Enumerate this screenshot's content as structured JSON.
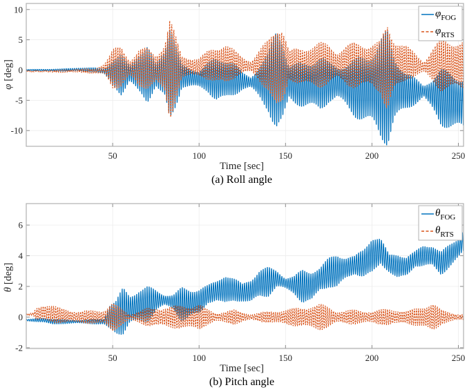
{
  "chart_data": [
    {
      "type": "line",
      "id": "roll",
      "caption": "(a) Roll angle",
      "xlabel": "Time [sec]",
      "ylabel_symbol": "φ",
      "ylabel_unit": " [deg]",
      "xlim": [
        0,
        253
      ],
      "ylim": [
        -12.6,
        11
      ],
      "xticks": [
        50,
        100,
        150,
        200,
        250
      ],
      "yticks": [
        10,
        5,
        0,
        -5,
        -10
      ],
      "xtick_labels": [
        "50",
        "100",
        "150",
        "200",
        "250"
      ],
      "ytick_labels": [
        "10",
        "5",
        "0",
        "-5",
        "-10"
      ],
      "grid": true,
      "legend_position": "top-right",
      "legend": [
        {
          "symbol": "φ",
          "sub": "FOG",
          "style": "solid",
          "color": "#0072BD"
        },
        {
          "symbol": "φ",
          "sub": "RTS",
          "style": "dashed",
          "color": "#D95319"
        }
      ],
      "series": [
        {
          "name": "φ_FOG",
          "color": "#0072BD",
          "style": "solid",
          "oscillation_period_sec": 1.2,
          "envelope": {
            "t": [
              0,
              20,
              30,
              40,
              45,
              50,
              55,
              60,
              65,
              70,
              75,
              80,
              83,
              87,
              90,
              100,
              105,
              110,
              115,
              120,
              125,
              130,
              140,
              145,
              148,
              152,
              160,
              170,
              175,
              180,
              185,
              190,
              200,
              205,
              209,
              213,
              220,
              230,
              235,
              240,
              245,
              253
            ],
            "center": [
              0,
              0,
              0.1,
              0,
              -0.2,
              -0.5,
              -0.8,
              -0.5,
              -0.5,
              -0.8,
              -0.8,
              -0.5,
              -0.5,
              -1.0,
              -1.0,
              -1.5,
              -1.2,
              -1.5,
              -1.5,
              -1.5,
              -1.8,
              -2.0,
              -2.0,
              -1.5,
              -1.8,
              -2.0,
              -2.5,
              -2.2,
              -2.0,
              -2.0,
              -2.5,
              -3.0,
              -3.0,
              -3.0,
              -3.0,
              -3.0,
              -3.5,
              -3.5,
              -4.0,
              -4.5,
              -5.0,
              -5.5
            ],
            "amp": [
              0.1,
              0.2,
              0.3,
              0.4,
              0.5,
              2.5,
              3.5,
              1.5,
              4.0,
              5.0,
              2.0,
              5.0,
              10.0,
              5.0,
              2.0,
              1.5,
              2.5,
              4.0,
              4.0,
              3.0,
              1.5,
              1.0,
              5.0,
              10.0,
              9.0,
              3.0,
              4.0,
              5.0,
              3.5,
              3.0,
              4.0,
              5.0,
              7.0,
              9.0,
              10.0,
              6.0,
              3.5,
              1.0,
              3.0,
              5.0,
              5.0,
              5.0
            ]
          }
        },
        {
          "name": "φ_RTS",
          "color": "#D95319",
          "style": "dashed",
          "oscillation_period_sec": 1.2,
          "envelope": {
            "t": [
              0,
              20,
              30,
              40,
              45,
              50,
              55,
              60,
              65,
              70,
              75,
              80,
              83,
              87,
              90,
              100,
              105,
              110,
              115,
              120,
              125,
              130,
              140,
              145,
              148,
              152,
              160,
              170,
              175,
              180,
              185,
              190,
              200,
              205,
              209,
              213,
              220,
              230,
              235,
              240,
              245,
              253
            ],
            "center": [
              -0.2,
              -0.2,
              -0.1,
              -0.2,
              0.2,
              0.2,
              0.5,
              0.3,
              0.3,
              0.3,
              0.2,
              0.3,
              0.0,
              0.3,
              0.5,
              0.5,
              0.8,
              0.8,
              1.0,
              1.0,
              0.8,
              0.6,
              0.8,
              0.3,
              0.5,
              0.8,
              0.6,
              0.8,
              1.0,
              0.8,
              0.8,
              0.8,
              0.8,
              0.5,
              0.3,
              0.8,
              1.2,
              0.5,
              0.8,
              0.8,
              0.8,
              0.8
            ],
            "amp": [
              0.1,
              0.2,
              0.3,
              0.4,
              1.0,
              3.5,
              3.5,
              1.5,
              3.5,
              3.5,
              2.5,
              5.0,
              9.5,
              5.0,
              2.0,
              1.5,
              2.5,
              3.5,
              3.8,
              2.5,
              1.5,
              1.0,
              4.5,
              8.5,
              8.0,
              2.5,
              3.5,
              4.0,
              3.5,
              2.5,
              3.5,
              4.0,
              4.0,
              4.5,
              8.0,
              5.0,
              3.0,
              1.0,
              3.0,
              4.5,
              4.5,
              4.5
            ]
          }
        }
      ]
    },
    {
      "type": "line",
      "id": "pitch",
      "caption": "(b) Pitch angle",
      "xlabel": "Time [sec]",
      "ylabel_symbol": "θ",
      "ylabel_unit": " [deg]",
      "xlim": [
        0,
        253
      ],
      "ylim": [
        -2.05,
        7.4
      ],
      "xticks": [
        50,
        100,
        150,
        200,
        250
      ],
      "yticks": [
        6,
        4,
        2,
        0,
        -2
      ],
      "xtick_labels": [
        "50",
        "100",
        "150",
        "200",
        "250"
      ],
      "ytick_labels": [
        "6",
        "4",
        "2",
        "0",
        "-2"
      ],
      "grid": true,
      "legend_position": "top-right",
      "legend": [
        {
          "symbol": "θ",
          "sub": "FOG",
          "style": "solid",
          "color": "#0072BD"
        },
        {
          "symbol": "θ",
          "sub": "RTS",
          "style": "dashed",
          "color": "#D95319"
        }
      ],
      "series": [
        {
          "name": "θ_FOG",
          "color": "#0072BD",
          "style": "solid",
          "oscillation_period_sec": 1.2,
          "envelope": {
            "t": [
              0,
              5,
              10,
              15,
              20,
              30,
              45,
              48,
              52,
              56,
              60,
              65,
              70,
              75,
              80,
              85,
              90,
              95,
              100,
              105,
              110,
              115,
              120,
              125,
              130,
              135,
              140,
              145,
              150,
              155,
              160,
              165,
              170,
              175,
              180,
              185,
              190,
              195,
              200,
              205,
              210,
              215,
              220,
              225,
              230,
              235,
              240,
              245,
              250,
              253
            ],
            "center": [
              -0.2,
              -0.2,
              -0.2,
              -0.3,
              -0.3,
              -0.3,
              -0.3,
              0.0,
              0.0,
              0.4,
              0.5,
              0.7,
              0.8,
              1.1,
              1.1,
              1.0,
              0.8,
              0.9,
              1.0,
              1.5,
              1.7,
              1.8,
              1.8,
              1.6,
              1.7,
              2.2,
              2.3,
              2.5,
              2.2,
              2.1,
              2.0,
              2.0,
              2.5,
              2.9,
              3.0,
              3.2,
              3.4,
              3.5,
              4.0,
              4.3,
              3.5,
              3.3,
              3.3,
              3.8,
              4.0,
              4.0,
              3.5,
              4.0,
              4.5,
              5.0
            ],
            "amp": [
              0.05,
              0.1,
              0.15,
              0.2,
              0.15,
              0.1,
              0.2,
              1.0,
              1.2,
              1.6,
              1.0,
              1.3,
              1.3,
              0.7,
              0.4,
              0.5,
              1.2,
              1.0,
              1.0,
              0.6,
              0.7,
              1.2,
              0.8,
              0.6,
              0.9,
              1.0,
              1.0,
              0.6,
              0.4,
              0.6,
              1.2,
              1.2,
              0.8,
              1.0,
              1.3,
              0.8,
              0.6,
              1.0,
              1.5,
              0.9,
              0.6,
              1.0,
              0.7,
              0.5,
              0.8,
              0.8,
              0.8,
              0.8,
              0.8,
              0.9
            ]
          }
        },
        {
          "name": "θ_RTS",
          "color": "#D95319",
          "style": "dashed",
          "oscillation_period_sec": 1.2,
          "envelope": {
            "t": [
              0,
              4,
              6,
              10,
              15,
              20,
              30,
              45,
              50,
              55,
              60,
              70,
              80,
              90,
              100,
              105,
              110,
              120,
              130,
              140,
              150,
              160,
              170,
              175,
              180,
              190,
              200,
              210,
              220,
              230,
              235,
              240,
              250,
              253
            ],
            "center": [
              0.15,
              0.2,
              0.2,
              0.3,
              0.2,
              0.1,
              0.0,
              0.0,
              0.0,
              0.0,
              0.0,
              0.0,
              0.0,
              0.0,
              0.0,
              0.0,
              0.0,
              0.0,
              0.0,
              0.0,
              0.0,
              0.0,
              0.0,
              0.0,
              0.0,
              0.0,
              0.0,
              0.0,
              0.0,
              0.0,
              0.0,
              0.0,
              0.0,
              0.0
            ],
            "amp": [
              0.05,
              0.1,
              0.45,
              0.6,
              0.6,
              0.5,
              0.4,
              0.5,
              1.0,
              0.6,
              0.2,
              0.6,
              0.7,
              0.8,
              0.9,
              0.5,
              0.3,
              0.5,
              0.2,
              0.4,
              0.5,
              0.7,
              0.9,
              0.7,
              0.4,
              0.5,
              0.4,
              0.6,
              0.4,
              0.8,
              1.0,
              0.5,
              0.2,
              0.2
            ]
          }
        }
      ]
    }
  ]
}
